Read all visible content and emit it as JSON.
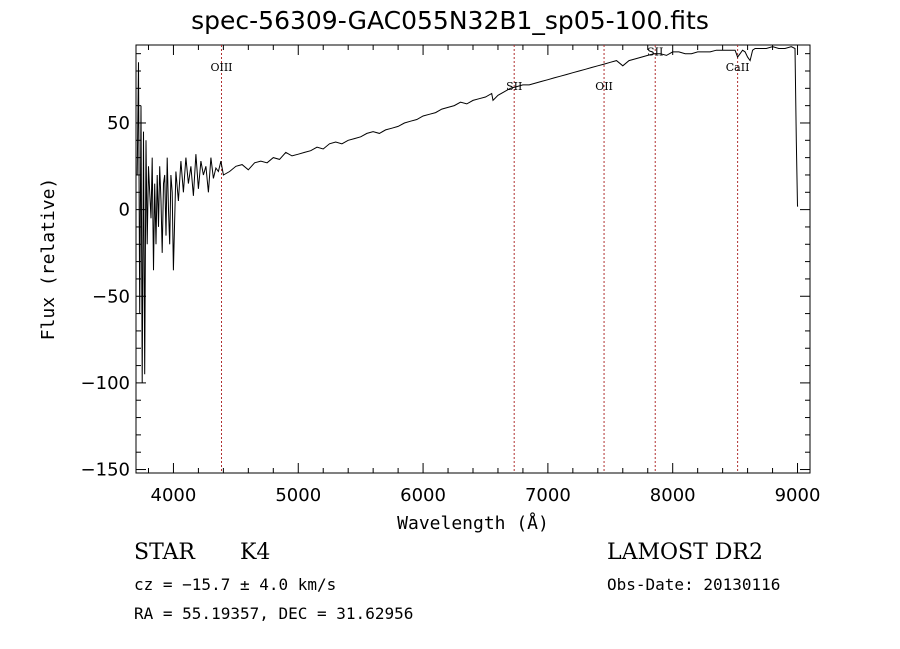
{
  "chart_data": {
    "type": "line",
    "title": "spec-56309-GAC055N32B1_sp05-100.fits",
    "xlabel": "Wavelength (Å)",
    "ylabel": "Flux (relative)",
    "xlim": [
      3700,
      9100
    ],
    "ylim": [
      -152,
      95
    ],
    "xticks": [
      4000,
      5000,
      6000,
      7000,
      8000,
      9000
    ],
    "yticks": [
      -150,
      -100,
      -50,
      0,
      50
    ],
    "xtick_labels": [
      "4000",
      "5000",
      "6000",
      "7000",
      "8000",
      "9000"
    ],
    "ytick_labels": [
      "−150",
      "−100",
      "−50",
      "0",
      "50"
    ],
    "grid": false,
    "line_color": "#000000",
    "marker_color": "#b03030",
    "lines": [
      {
        "label": "OIII",
        "x": 4385,
        "label_y": 80
      },
      {
        "label": "SII",
        "x": 6730,
        "label_y": 69
      },
      {
        "label": "OII",
        "x": 7450,
        "label_y": 69
      },
      {
        "label": "SII",
        "x": 7860,
        "label_y": 89
      },
      {
        "label": "CaII",
        "x": 8520,
        "label_y": 80
      }
    ],
    "series": [
      {
        "x": [
          3710,
          3720,
          3730,
          3740,
          3750,
          3760,
          3770,
          3780,
          3790,
          3800,
          3810,
          3820,
          3830,
          3840,
          3850,
          3860,
          3870,
          3880,
          3890,
          3900,
          3910,
          3920,
          3930,
          3940,
          3950,
          3960,
          3970,
          3980,
          3990,
          4000,
          4020,
          4040,
          4060,
          4080,
          4100,
          4120,
          4140,
          4160,
          4180,
          4200,
          4220,
          4240,
          4260,
          4280,
          4300,
          4320,
          4340,
          4360,
          4380,
          4400,
          4450,
          4500,
          4550,
          4600,
          4650,
          4700,
          4750,
          4800,
          4850,
          4900,
          4950,
          5000,
          5050,
          5100,
          5150,
          5200,
          5250,
          5300,
          5350,
          5400,
          5450,
          5500,
          5550,
          5600,
          5650,
          5700,
          5750,
          5800,
          5850,
          5900,
          5950,
          6000,
          6050,
          6100,
          6150,
          6200,
          6250,
          6300,
          6350,
          6400,
          6450,
          6500,
          6550,
          6560,
          6600,
          6650,
          6700,
          6750,
          6800,
          6850,
          6900,
          6950,
          7000,
          7050,
          7100,
          7150,
          7200,
          7250,
          7300,
          7350,
          7400,
          7450,
          7500,
          7550,
          7600,
          7650,
          7700,
          7750,
          7800,
          7850,
          7900,
          7950,
          8000,
          8050,
          8100,
          8150,
          8200,
          8250,
          8300,
          8350,
          8400,
          8450,
          8500,
          8520,
          8540,
          8560,
          8580,
          8600,
          8620,
          8640,
          8660,
          8680,
          8700,
          8750,
          8800,
          8850,
          8900,
          8950,
          8980,
          8990,
          9000,
          9005
        ],
        "y": [
          20,
          85,
          -60,
          60,
          -100,
          45,
          -95,
          40,
          -20,
          25,
          10,
          -5,
          30,
          -35,
          15,
          -20,
          20,
          -10,
          25,
          5,
          -25,
          15,
          20,
          -15,
          30,
          0,
          -20,
          20,
          10,
          -35,
          22,
          5,
          28,
          10,
          30,
          15,
          25,
          8,
          32,
          12,
          28,
          20,
          25,
          10,
          30,
          18,
          24,
          22,
          28,
          20,
          22,
          25,
          26,
          23,
          27,
          28,
          27,
          30,
          29,
          33,
          31,
          32,
          33,
          34,
          36,
          35,
          38,
          39,
          38,
          40,
          41,
          42,
          44,
          45,
          44,
          46,
          47,
          48,
          50,
          51,
          52,
          54,
          55,
          56,
          58,
          59,
          60,
          62,
          61,
          63,
          64,
          65,
          67,
          63,
          66,
          68,
          70,
          71,
          72,
          72,
          73,
          74,
          75,
          76,
          77,
          78,
          79,
          80,
          81,
          82,
          83,
          84,
          85,
          86,
          83,
          86,
          87,
          88,
          89,
          90,
          90,
          89,
          91,
          91,
          90,
          90,
          91,
          91,
          91,
          92,
          92,
          92,
          92,
          88,
          90,
          92,
          91,
          88,
          86,
          92,
          93,
          93,
          93,
          93,
          94,
          93,
          93,
          94,
          93,
          40,
          2,
          2
        ]
      }
    ]
  },
  "info": {
    "class": "STAR",
    "subclass": "K4",
    "cz": "cz = −15.7 ± 4.0 km/s",
    "coords": "RA =  55.19357, DEC =  31.62956",
    "survey": "LAMOST DR2",
    "obsdate": "Obs-Date: 20130116"
  }
}
